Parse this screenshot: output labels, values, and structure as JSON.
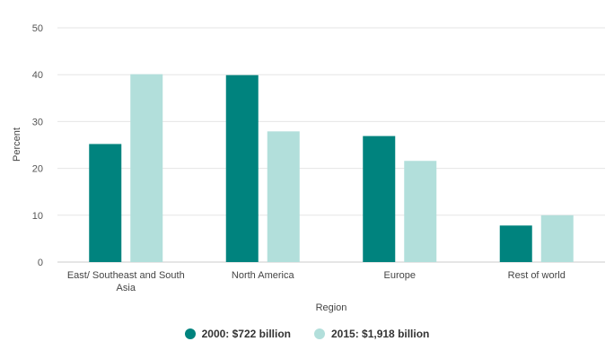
{
  "chart_data": {
    "type": "bar",
    "categories": [
      "East/ Southeast and South Asia",
      "North America",
      "Europe",
      "Rest of world"
    ],
    "category_lines": [
      [
        "East/ Southeast and South",
        "Asia"
      ],
      [
        "North America"
      ],
      [
        "Europe"
      ],
      [
        "Rest of world"
      ]
    ],
    "series": [
      {
        "name": "2000: $722 billion",
        "color": "#00837e",
        "values": [
          25.2,
          39.9,
          26.9,
          7.8
        ]
      },
      {
        "name": "2015: $1,918 billion",
        "color": "#b2dfdb",
        "values": [
          40.1,
          27.9,
          21.6,
          10.0
        ]
      }
    ],
    "xlabel": "Region",
    "ylabel": "Percent",
    "ylim": [
      0,
      50
    ],
    "yticks": [
      0,
      10,
      20,
      30,
      40,
      50
    ],
    "grid": true,
    "legend_position": "bottom"
  }
}
